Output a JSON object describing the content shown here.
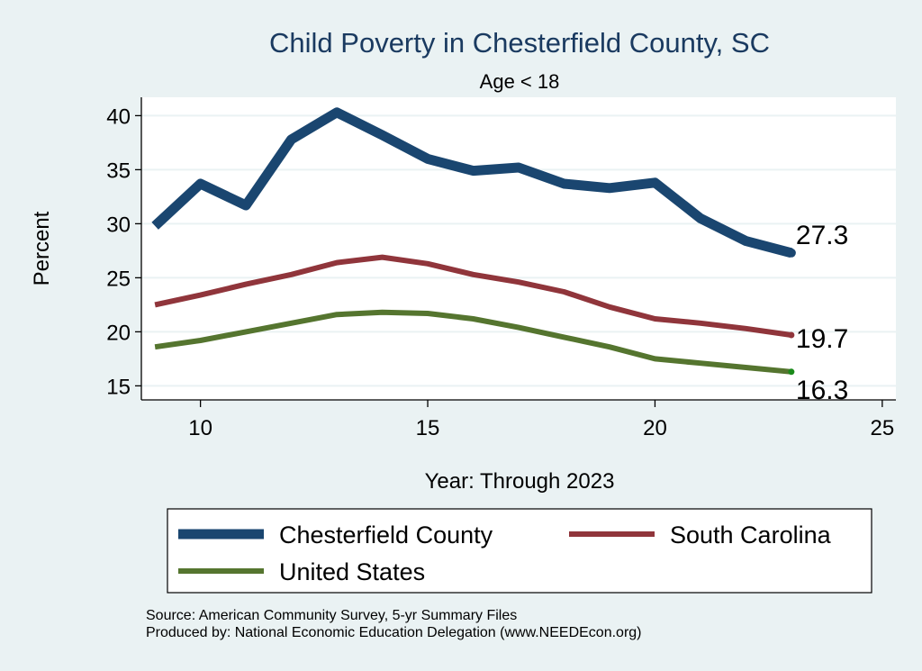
{
  "chart_data": {
    "type": "line",
    "title": "Child Poverty in Chesterfield County, SC",
    "subtitle": "Age < 18",
    "xlabel": "Year: Through 2023",
    "ylabel": "Percent",
    "xlim": [
      8.7,
      25.3
    ],
    "ylim": [
      13.7,
      41.7
    ],
    "x_ticks": [
      10,
      15,
      20,
      25
    ],
    "y_ticks": [
      15,
      20,
      25,
      30,
      35,
      40
    ],
    "grid": true,
    "legend_position": "bottom",
    "x": [
      9,
      10,
      11,
      12,
      13,
      14,
      15,
      16,
      17,
      18,
      19,
      20,
      21,
      22,
      23
    ],
    "series": [
      {
        "name": "Chesterfield County",
        "color": "#1a4670",
        "values": [
          29.8,
          33.7,
          31.7,
          37.8,
          40.3,
          38.2,
          36.0,
          34.9,
          35.2,
          33.7,
          33.3,
          33.8,
          30.5,
          28.4,
          27.3
        ],
        "end_label": "27.3"
      },
      {
        "name": "South Carolina",
        "color": "#90353b",
        "values": [
          22.5,
          23.4,
          24.4,
          25.3,
          26.4,
          26.9,
          26.3,
          25.3,
          24.6,
          23.7,
          22.3,
          21.2,
          20.8,
          20.3,
          19.7
        ],
        "end_label": "19.7"
      },
      {
        "name": "United States",
        "color": "#55752f",
        "values": [
          18.6,
          19.2,
          20.0,
          20.8,
          21.6,
          21.8,
          21.7,
          21.2,
          20.4,
          19.5,
          18.6,
          17.5,
          17.1,
          16.7,
          16.3
        ],
        "end_label": "16.3"
      }
    ],
    "notes": [
      "Source: American Community Survey, 5-yr Summary Files",
      "Produced by: National Economic Education Delegation (www.NEEDEcon.org)"
    ]
  },
  "colors": {
    "background": "#eaf2f3",
    "plot_background": "#ffffff",
    "gridline": "#eaf2f3",
    "title": "#1a3a60",
    "end_marker_us": "#1a8a1a"
  }
}
